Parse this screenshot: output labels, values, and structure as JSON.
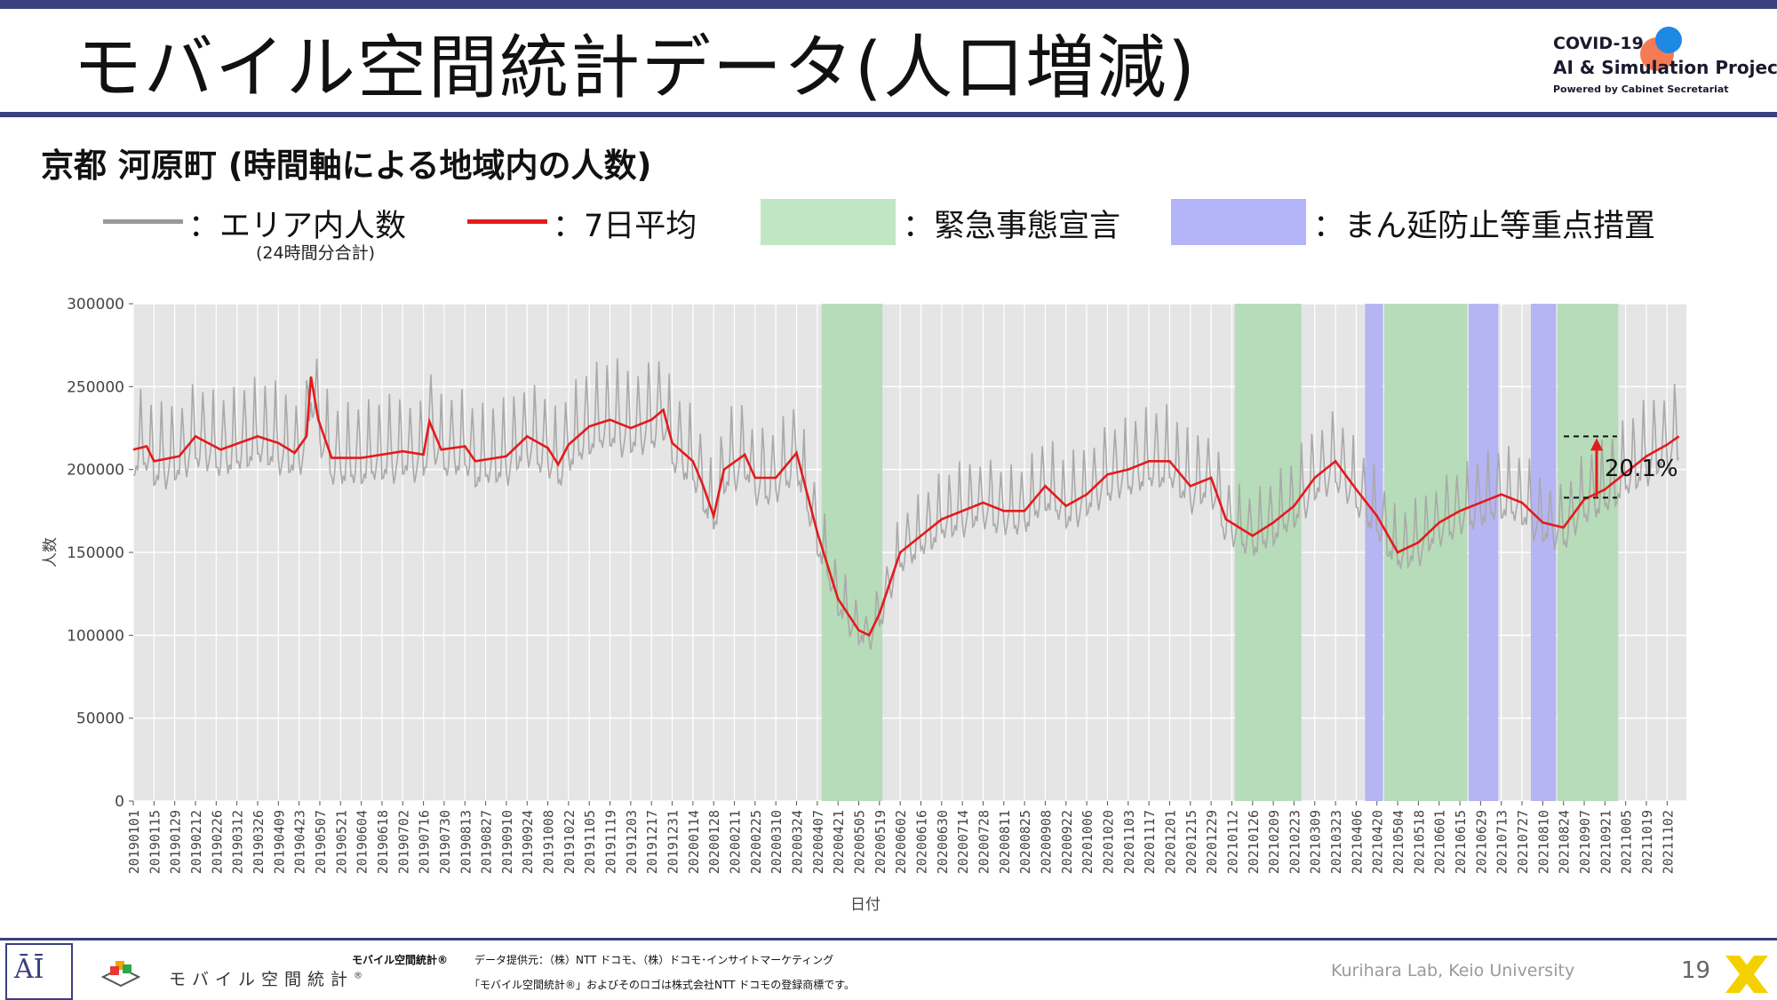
{
  "slide": {
    "title": "モバイル空間統計データ(人口増減)",
    "subtitle": "京都 河原町 (時間軸による地域内の人数)",
    "page_number": "19"
  },
  "brand": {
    "line1": "COVID-19",
    "line2": "AI & Simulation Project",
    "line3": "Powered by Cabinet Secretariat"
  },
  "legend": {
    "daily_label": "：エリア内人数",
    "daily_note": "(24時間分合計)",
    "avg_label": "：7日平均",
    "emergency_label": "：緊急事態宣言",
    "semi_label": "：まん延防止等重点措置"
  },
  "footer": {
    "brand_text": "モバイル空間統計",
    "brand_reg": "®",
    "source_title": "モバイル空間統計®",
    "source_text": "データ提供元：（株）NTT ドコモ、（株）ドコモ･インサイトマーケティング",
    "trademark": "「モバイル空間統計®」およびそのロゴは株式会社NTT ドコモの登録商標です。",
    "lab": "Kurihara Lab, Keio University"
  },
  "colors": {
    "daily": "#a9a9a9",
    "avg": "#e41a1c",
    "emergency": "#c1e6c4",
    "semi": "#b4b4f8",
    "plot_bg": "#e5e5e5",
    "accent": "#3b3f7e"
  },
  "chart_data": {
    "type": "line",
    "xlabel": "日付",
    "ylabel": "人数",
    "ylim": [
      0,
      300000
    ],
    "yticks": [
      0,
      50000,
      100000,
      150000,
      200000,
      250000,
      300000
    ],
    "x_start": "20190101",
    "x_end": "20211115",
    "grid": true,
    "xtick_labels": [
      "20190101",
      "20190115",
      "20190129",
      "20190212",
      "20190226",
      "20190312",
      "20190326",
      "20190409",
      "20190423",
      "20190507",
      "20190521",
      "20190604",
      "20190618",
      "20190702",
      "20190716",
      "20190730",
      "20190813",
      "20190827",
      "20190910",
      "20190924",
      "20191008",
      "20191022",
      "20191105",
      "20191119",
      "20191203",
      "20191217",
      "20191231",
      "20200114",
      "20200128",
      "20200211",
      "20200225",
      "20200310",
      "20200324",
      "20200407",
      "20200421",
      "20200505",
      "20200519",
      "20200602",
      "20200616",
      "20200630",
      "20200714",
      "20200728",
      "20200811",
      "20200825",
      "20200908",
      "20200922",
      "20201006",
      "20201020",
      "20201103",
      "20201117",
      "20201201",
      "20201215",
      "20201229",
      "20210112",
      "20210126",
      "20210209",
      "20210223",
      "20210309",
      "20210323",
      "20210406",
      "20210420",
      "20210504",
      "20210518",
      "20210601",
      "20210615",
      "20210629",
      "20210713",
      "20210727",
      "20210810",
      "20210824",
      "20210907",
      "20210921",
      "20211005",
      "20211019",
      "20211102"
    ],
    "shaded_periods": [
      {
        "type": "emergency",
        "start": "20200410",
        "end": "20200521"
      },
      {
        "type": "emergency",
        "start": "20210114",
        "end": "20210228"
      },
      {
        "type": "semi",
        "start": "20210412",
        "end": "20210424"
      },
      {
        "type": "emergency",
        "start": "20210425",
        "end": "20210620"
      },
      {
        "type": "semi",
        "start": "20210621",
        "end": "20210711"
      },
      {
        "type": "semi",
        "start": "20210802",
        "end": "20210819"
      },
      {
        "type": "emergency",
        "start": "20210820",
        "end": "20210930"
      }
    ],
    "series": [
      {
        "name": "エリア内人数",
        "kind": "daily",
        "weekly_peak_amplitude": 30000,
        "note": "daily values oscillate weekly around the 7-day average"
      },
      {
        "name": "7日平均",
        "kind": "avg",
        "points": [
          [
            "20190101",
            212000
          ],
          [
            "20190110",
            214000
          ],
          [
            "20190115",
            205000
          ],
          [
            "20190201",
            208000
          ],
          [
            "20190212",
            220000
          ],
          [
            "20190301",
            212000
          ],
          [
            "20190326",
            220000
          ],
          [
            "20190409",
            216000
          ],
          [
            "20190420",
            210000
          ],
          [
            "20190428",
            220000
          ],
          [
            "20190501",
            256000
          ],
          [
            "20190506",
            230000
          ],
          [
            "20190515",
            207000
          ],
          [
            "20190604",
            207000
          ],
          [
            "20190702",
            211000
          ],
          [
            "20190716",
            209000
          ],
          [
            "20190720",
            229000
          ],
          [
            "20190728",
            212000
          ],
          [
            "20190813",
            214000
          ],
          [
            "20190820",
            205000
          ],
          [
            "20190910",
            208000
          ],
          [
            "20190924",
            220000
          ],
          [
            "20191008",
            213000
          ],
          [
            "20191015",
            203000
          ],
          [
            "20191022",
            215000
          ],
          [
            "20191105",
            226000
          ],
          [
            "20191119",
            230000
          ],
          [
            "20191203",
            225000
          ],
          [
            "20191217",
            230000
          ],
          [
            "20191225",
            236000
          ],
          [
            "20191231",
            216000
          ],
          [
            "20200114",
            205000
          ],
          [
            "20200121",
            190000
          ],
          [
            "20200128",
            172000
          ],
          [
            "20200204",
            200000
          ],
          [
            "20200218",
            209000
          ],
          [
            "20200225",
            195000
          ],
          [
            "20200310",
            195000
          ],
          [
            "20200324",
            210000
          ],
          [
            "20200407",
            162000
          ],
          [
            "20200421",
            122000
          ],
          [
            "20200505",
            103000
          ],
          [
            "20200512",
            100000
          ],
          [
            "20200519",
            113000
          ],
          [
            "20200602",
            150000
          ],
          [
            "20200616",
            160000
          ],
          [
            "20200630",
            170000
          ],
          [
            "20200714",
            175000
          ],
          [
            "20200728",
            180000
          ],
          [
            "20200811",
            175000
          ],
          [
            "20200825",
            175000
          ],
          [
            "20200908",
            190000
          ],
          [
            "20200922",
            178000
          ],
          [
            "20201006",
            185000
          ],
          [
            "20201020",
            197000
          ],
          [
            "20201103",
            200000
          ],
          [
            "20201117",
            205000
          ],
          [
            "20201201",
            205000
          ],
          [
            "20201215",
            190000
          ],
          [
            "20201229",
            195000
          ],
          [
            "20210108",
            170000
          ],
          [
            "20210126",
            160000
          ],
          [
            "20210209",
            168000
          ],
          [
            "20210223",
            178000
          ],
          [
            "20210309",
            195000
          ],
          [
            "20210323",
            205000
          ],
          [
            "20210406",
            188000
          ],
          [
            "20210420",
            172000
          ],
          [
            "20210504",
            150000
          ],
          [
            "20210518",
            156000
          ],
          [
            "20210601",
            168000
          ],
          [
            "20210615",
            175000
          ],
          [
            "20210629",
            180000
          ],
          [
            "20210713",
            185000
          ],
          [
            "20210727",
            180000
          ],
          [
            "20210810",
            168000
          ],
          [
            "20210824",
            165000
          ],
          [
            "20210907",
            182000
          ],
          [
            "20210921",
            188000
          ],
          [
            "20211005",
            198000
          ],
          [
            "20211019",
            208000
          ],
          [
            "20211102",
            215000
          ],
          [
            "20211110",
            220000
          ]
        ]
      }
    ],
    "annotation": {
      "text": "20.1%",
      "from_value": 183000,
      "to_value": 220000
    }
  }
}
